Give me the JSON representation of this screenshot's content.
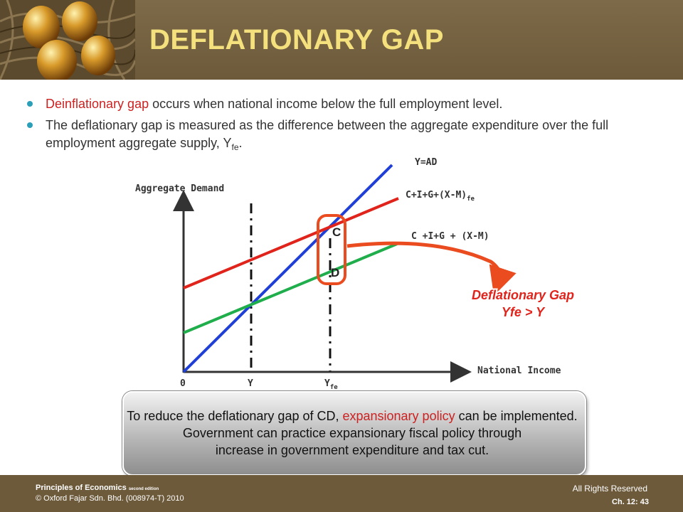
{
  "slide": {
    "title": "DEFLATIONARY GAP",
    "bullets": [
      {
        "highlight": "Deinflationary gap",
        "text": " occurs when national income below the full employment level."
      },
      {
        "text": "The deflationary gap is measured as the difference between  the aggregate expenditure over the full employment aggregate supply, Y",
        "sub": "fe",
        "tail": "."
      }
    ]
  },
  "diagram": {
    "y_axis_label": "Aggregate Demand",
    "x_axis_label": "National Income",
    "origin_label": "0",
    "y_tick": "Y",
    "yfe_tick": "Y",
    "yfe_sub": "fe",
    "line_45_label": "Y=AD",
    "line_red_label": "C+I+G+(X-M)",
    "line_red_sub": "fe",
    "line_green_label": "C +I+G + (X-M)",
    "point_c": "C",
    "point_d": "D",
    "gap_title": "Deflationary Gap",
    "gap_relation": "Yfe > Y",
    "colors": {
      "line_45": "#1f3fd6",
      "line_red": "#e0231b",
      "line_green": "#1fae4b",
      "arrow": "#ea4b1f",
      "gap_text": "#e0231b"
    }
  },
  "note": {
    "line1_pre": "To reduce the deflationary gap of CD, ",
    "line1_highlight": "expansionary policy",
    "line1_post": " can be implemented.",
    "line2": "Government can practice expansionary fiscal policy through",
    "line3": "increase in government expenditure and tax cut."
  },
  "footer": {
    "book": "Principles of Economics",
    "edition": "second edition",
    "publisher": "© Oxford Fajar Sdn. Bhd. (008974-T)  2010",
    "rights": "All Rights Reserved",
    "chapter": "Ch. 12: 43"
  }
}
